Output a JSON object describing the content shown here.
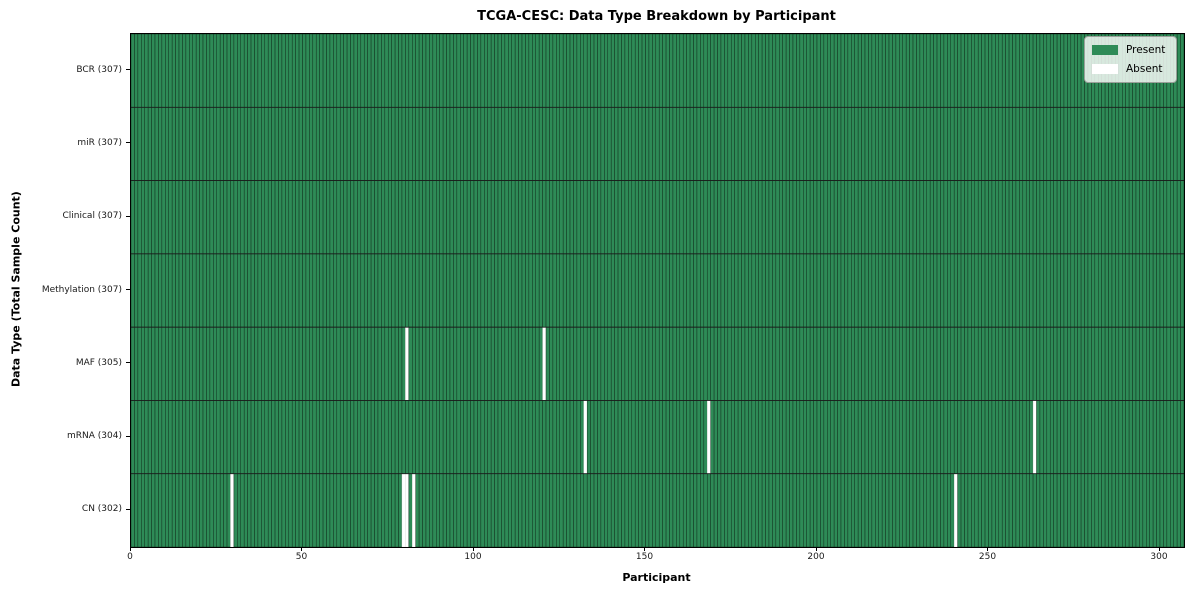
{
  "figure": {
    "title": "TCGA-CESC: Data Type Breakdown by Participant",
    "xlabel": "Participant",
    "ylabel": "Data Type (Total Sample Count)"
  },
  "chart_data": {
    "type": "heatmap",
    "title": "TCGA-CESC: Data Type Breakdown by Participant",
    "xlabel": "Participant",
    "ylabel": "Data Type (Total Sample Count)",
    "n_participants": 307,
    "xlim": [
      0,
      307
    ],
    "xticks": [
      0,
      50,
      100,
      150,
      200,
      250,
      300
    ],
    "grid": false,
    "legend_position": "upper right",
    "rows": [
      {
        "label": "BCR (307)",
        "name": "BCR",
        "total": 307,
        "absent_participants": []
      },
      {
        "label": "miR (307)",
        "name": "miR",
        "total": 307,
        "absent_participants": []
      },
      {
        "label": "Clinical (307)",
        "name": "Clinical",
        "total": 307,
        "absent_participants": []
      },
      {
        "label": "Methylation (307)",
        "name": "Methylation",
        "total": 307,
        "absent_participants": []
      },
      {
        "label": "MAF (305)",
        "name": "MAF",
        "total": 305,
        "absent_participants": [
          80,
          120
        ]
      },
      {
        "label": "mRNA (304)",
        "name": "mRNA",
        "total": 304,
        "absent_participants": [
          132,
          168,
          263
        ]
      },
      {
        "label": "CN (302)",
        "name": "CN",
        "total": 302,
        "absent_participants": [
          29,
          79,
          80,
          82,
          240
        ]
      }
    ],
    "legend": [
      {
        "label": "Present",
        "color": "#2e8b57"
      },
      {
        "label": "Absent",
        "color": "#ffffff"
      }
    ],
    "colors": {
      "present": "#2e8b57",
      "absent": "#ffffff",
      "bar_edge_on_present": "#123categorical",
      "bar_edge": "#10301d",
      "absent_edge": "#d9ded9",
      "row_separator": "#1b1b1b",
      "spine": "#000000"
    }
  }
}
